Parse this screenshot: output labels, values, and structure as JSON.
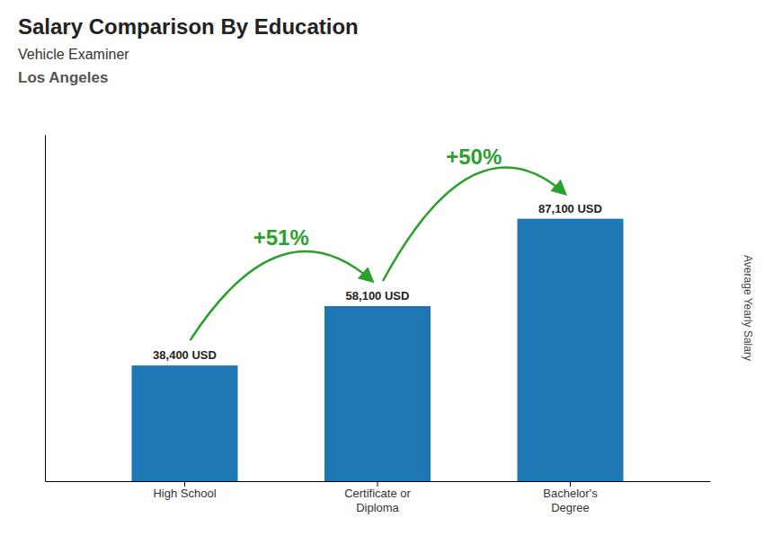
{
  "chart_data": {
    "type": "bar",
    "title": "Salary Comparison By Education",
    "subtitle": [
      "Vehicle Examiner",
      "Los Angeles"
    ],
    "ylabel": "Average Yearly Salary",
    "categories": [
      "High School",
      "Certificate or\nDiploma",
      "Bachelor's\nDegree"
    ],
    "values": [
      38400,
      58100,
      87100
    ],
    "value_labels": [
      "38,400 USD",
      "58,100 USD",
      "87,100 USD"
    ],
    "data_labels": true,
    "annotations": [
      "+51%",
      "+50%"
    ],
    "ylim": [
      0,
      115000
    ],
    "grid": false,
    "tick_labels": "x"
  }
}
